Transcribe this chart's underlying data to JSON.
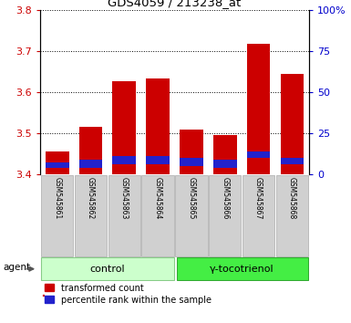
{
  "title": "GDS4059 / 213238_at",
  "samples": [
    "GSM545861",
    "GSM545862",
    "GSM545863",
    "GSM545864",
    "GSM545865",
    "GSM545866",
    "GSM545867",
    "GSM545868"
  ],
  "bar_tops": [
    3.455,
    3.515,
    3.627,
    3.633,
    3.51,
    3.495,
    3.717,
    3.645
  ],
  "bar_bottom": 3.4,
  "blue_bottoms": [
    3.415,
    3.415,
    3.425,
    3.425,
    3.42,
    3.415,
    3.44,
    3.425
  ],
  "blue_tops": [
    3.43,
    3.435,
    3.445,
    3.445,
    3.44,
    3.435,
    3.455,
    3.44
  ],
  "ylim": [
    3.4,
    3.8
  ],
  "yticks": [
    3.4,
    3.5,
    3.6,
    3.7,
    3.8
  ],
  "y2ticks": [
    0,
    25,
    50,
    75,
    100
  ],
  "y2labels": [
    "0",
    "25",
    "50",
    "75",
    "100%"
  ],
  "bar_color": "#cc0000",
  "blue_color": "#2222cc",
  "ylabel_color": "#cc0000",
  "y2label_color": "#0000cc",
  "ctrl_color": "#ccffcc",
  "toc_color": "#44ee44",
  "legend_red_label": "transformed count",
  "legend_blue_label": "percentile rank within the sample",
  "agent_label": "agent",
  "ctrl_label": "control",
  "toc_label": "γ-tocotrienol",
  "n_ctrl": 4,
  "n_toc": 4
}
